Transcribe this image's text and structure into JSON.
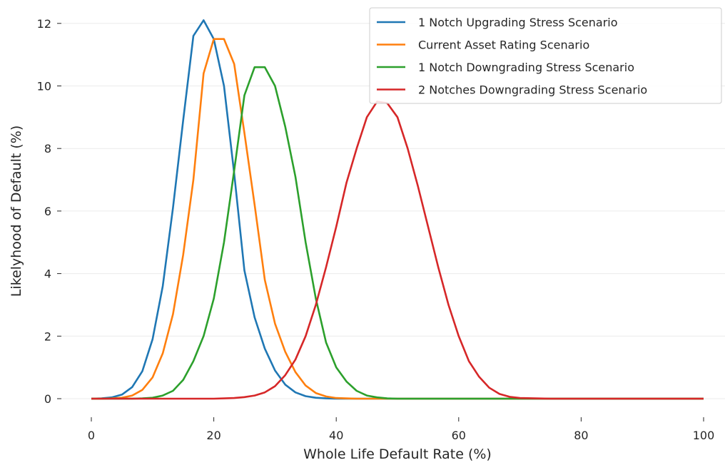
{
  "chart_data": {
    "type": "line",
    "title": "",
    "xlabel": "Whole Life Default Rate (%)",
    "ylabel": "Likelyhood of Default (%)",
    "xlim": [
      0,
      100
    ],
    "ylim": [
      0,
      12.5
    ],
    "xticks": [
      0,
      20,
      40,
      60,
      80,
      100
    ],
    "yticks": [
      0,
      2,
      4,
      6,
      8,
      10,
      12
    ],
    "xtick_labels": [
      "0",
      "20",
      "40",
      "60",
      "80",
      "100"
    ],
    "ytick_labels": [
      "0",
      "2",
      "4",
      "6",
      "8",
      "10",
      "12"
    ],
    "grid": "horizontal",
    "legend_position": "top-right",
    "x": [
      0,
      1.67,
      3.33,
      5,
      6.67,
      8.33,
      10,
      11.67,
      13.33,
      15,
      16.67,
      18.33,
      20,
      21.67,
      23.33,
      25,
      26.67,
      28.33,
      30,
      31.67,
      33.33,
      35,
      36.67,
      38.33,
      40,
      41.67,
      43.33,
      45,
      46.67,
      48.33,
      50,
      51.67,
      53.33,
      55,
      56.67,
      58.33,
      60,
      61.67,
      63.33,
      65,
      66.67,
      68.33,
      70,
      75,
      80,
      85,
      90,
      95,
      100
    ],
    "series": [
      {
        "name": "1 Notch Upgrading Stress Scenario",
        "color": "#1f77b4",
        "values": [
          0,
          0.01,
          0.04,
          0.13,
          0.37,
          0.88,
          1.9,
          3.6,
          6.1,
          8.9,
          11.6,
          12.1,
          11.5,
          10.0,
          7.2,
          4.1,
          2.6,
          1.6,
          0.9,
          0.45,
          0.2,
          0.08,
          0.03,
          0.01,
          0,
          0,
          0,
          0,
          0,
          0,
          0,
          0,
          0,
          0,
          0,
          0,
          0,
          0,
          0,
          0,
          0,
          0,
          0,
          0,
          0,
          0,
          0,
          0,
          0
        ]
      },
      {
        "name": "Current Asset Rating Scenario",
        "color": "#ff7f0e",
        "values": [
          0,
          0,
          0.01,
          0.03,
          0.1,
          0.28,
          0.68,
          1.45,
          2.7,
          4.6,
          7.0,
          10.4,
          11.5,
          11.5,
          10.7,
          8.5,
          6.2,
          3.8,
          2.4,
          1.5,
          0.85,
          0.42,
          0.18,
          0.07,
          0.02,
          0.01,
          0,
          0,
          0,
          0,
          0,
          0,
          0,
          0,
          0,
          0,
          0,
          0,
          0,
          0,
          0,
          0,
          0,
          0,
          0,
          0,
          0,
          0,
          0
        ]
      },
      {
        "name": "1 Notch Downgrading Stress Scenario",
        "color": "#2ca02c",
        "values": [
          0,
          0,
          0,
          0,
          0,
          0.01,
          0.03,
          0.1,
          0.25,
          0.6,
          1.2,
          2.0,
          3.2,
          5.0,
          7.3,
          9.7,
          10.6,
          10.6,
          10.0,
          8.7,
          7.1,
          5.0,
          3.2,
          1.8,
          1.0,
          0.55,
          0.25,
          0.1,
          0.04,
          0.01,
          0,
          0,
          0,
          0,
          0,
          0,
          0,
          0,
          0,
          0,
          0,
          0,
          0,
          0,
          0,
          0,
          0,
          0,
          0
        ]
      },
      {
        "name": "2 Notches Downgrading Stress Scenario",
        "color": "#d62728",
        "values": [
          0,
          0,
          0,
          0,
          0,
          0,
          0,
          0,
          0,
          0,
          0,
          0,
          0,
          0.01,
          0.02,
          0.05,
          0.1,
          0.2,
          0.4,
          0.75,
          1.25,
          2.0,
          3.0,
          4.2,
          5.5,
          6.9,
          8.0,
          9.0,
          9.5,
          9.45,
          9.0,
          8.0,
          6.8,
          5.5,
          4.2,
          3.0,
          2.0,
          1.2,
          0.7,
          0.35,
          0.15,
          0.06,
          0.02,
          0,
          0,
          0,
          0,
          0,
          0
        ]
      }
    ]
  }
}
